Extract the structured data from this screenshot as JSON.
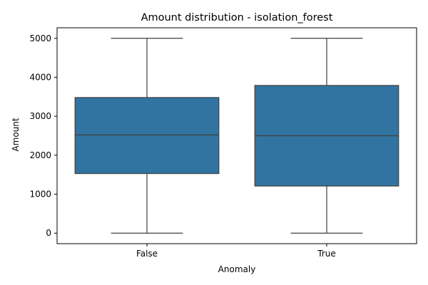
{
  "chart_data": {
    "type": "box",
    "title": "Amount distribution - isolation_forest",
    "xlabel": "Anomaly",
    "ylabel": "Amount",
    "ylim": [
      -270,
      5270
    ],
    "yticks": [
      0,
      1000,
      2000,
      3000,
      4000,
      5000
    ],
    "grid": false,
    "box_color": "#3274a1",
    "line_color": "#3f3f3f",
    "categories": [
      "False",
      "True"
    ],
    "boxes": [
      {
        "category": "False",
        "min": 0,
        "q1": 1530,
        "median": 2520,
        "q3": 3480,
        "max": 5000
      },
      {
        "category": "True",
        "min": 0,
        "q1": 1210,
        "median": 2500,
        "q3": 3790,
        "max": 5000
      }
    ]
  }
}
